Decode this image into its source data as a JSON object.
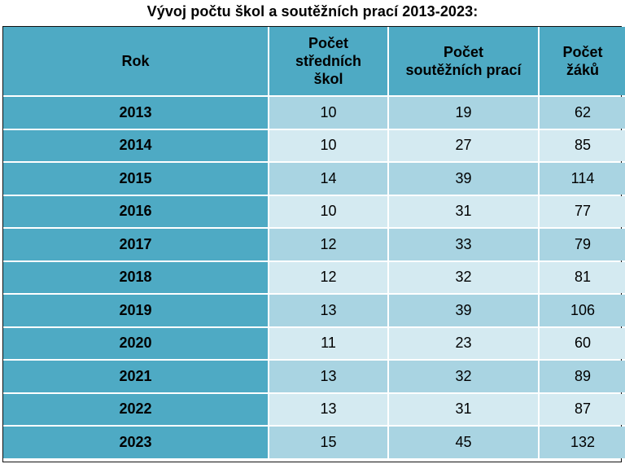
{
  "title": "Vývoj počtu škol a soutěžních prací 2013-2023:",
  "headers": {
    "rok": "Rok",
    "skoly_1": "Počet",
    "skoly_2": "středních",
    "skoly_3": "škol",
    "prace_1": "Počet",
    "prace_2": "soutěžních prací",
    "zaci_1": "Počet",
    "zaci_2": "žáků"
  },
  "rows": [
    {
      "rok": "2013",
      "skoly": "10",
      "prace": "19",
      "zaci": "62"
    },
    {
      "rok": "2014",
      "skoly": "10",
      "prace": "27",
      "zaci": "85"
    },
    {
      "rok": "2015",
      "skoly": "14",
      "prace": "39",
      "zaci": "114"
    },
    {
      "rok": "2016",
      "skoly": "10",
      "prace": "31",
      "zaci": "77"
    },
    {
      "rok": "2017",
      "skoly": "12",
      "prace": "33",
      "zaci": "79"
    },
    {
      "rok": "2018",
      "skoly": "12",
      "prace": "32",
      "zaci": "81"
    },
    {
      "rok": "2019",
      "skoly": "13",
      "prace": "39",
      "zaci": "106"
    },
    {
      "rok": "2020",
      "skoly": "11",
      "prace": "23",
      "zaci": "60"
    },
    {
      "rok": "2021",
      "skoly": "13",
      "prace": "32",
      "zaci": "89"
    },
    {
      "rok": "2022",
      "skoly": "13",
      "prace": "31",
      "zaci": "87"
    },
    {
      "rok": "2023",
      "skoly": "15",
      "prace": "45",
      "zaci": "132"
    }
  ],
  "colors": {
    "header_bg": "#4eaac4",
    "row_odd": "#a9d4e2",
    "row_even": "#d4eaf1"
  }
}
